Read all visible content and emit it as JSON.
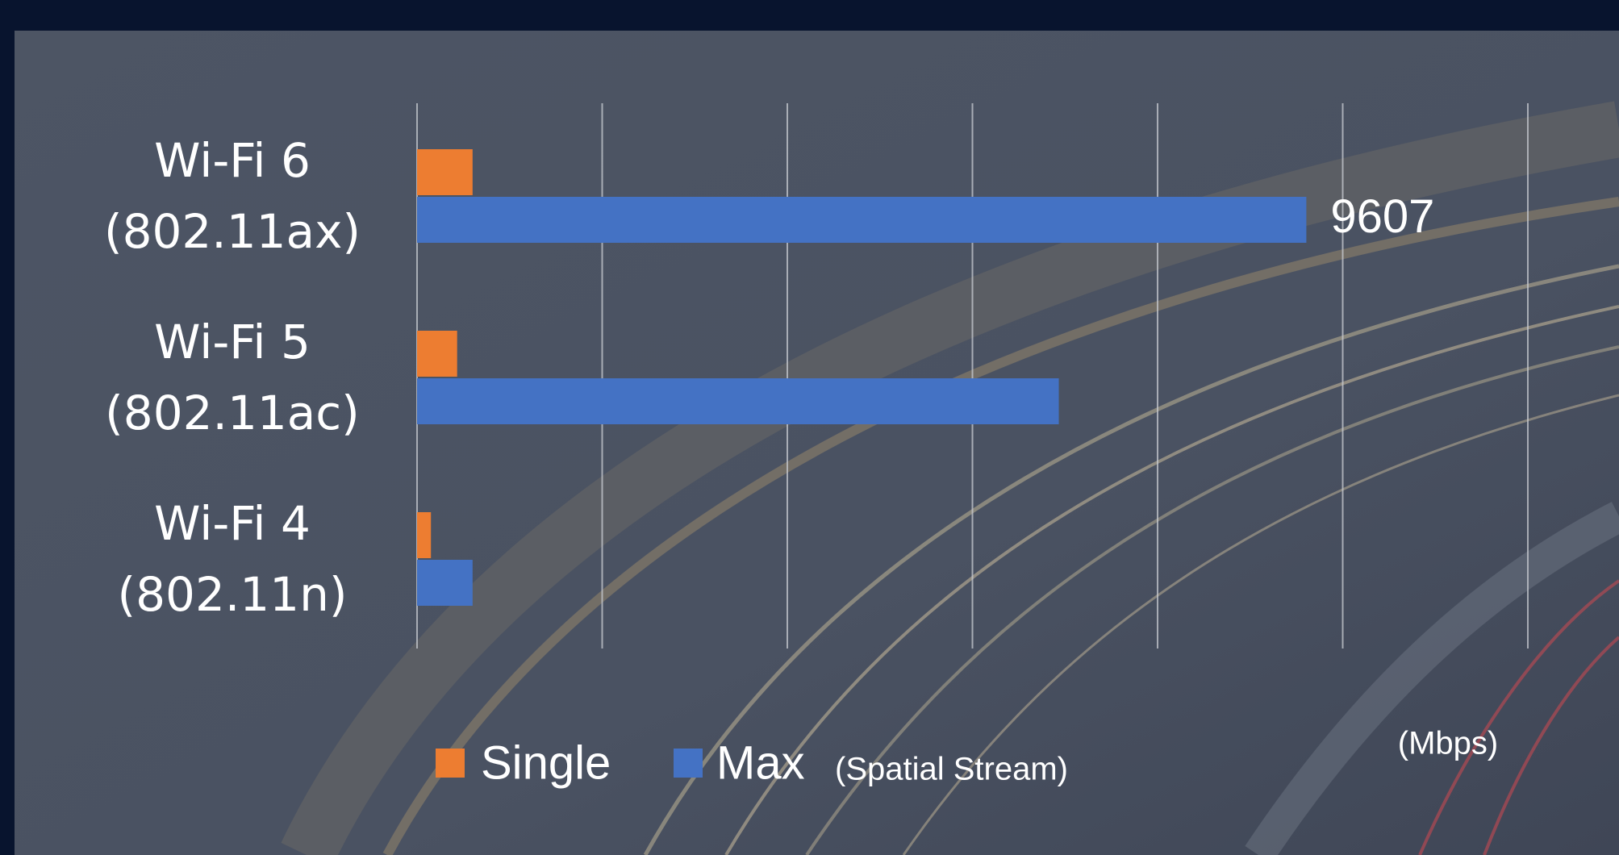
{
  "chart_data": {
    "type": "bar",
    "orientation": "horizontal",
    "categories": [
      "Wi-Fi 6 (802.11ax)",
      "Wi-Fi 5 (802.11ac)",
      "Wi-Fi 4 (802.11n)"
    ],
    "series": [
      {
        "name": "Single",
        "color": "#ed7d31",
        "values": [
          600,
          433,
          150
        ]
      },
      {
        "name": "Max",
        "color": "#4472c4",
        "values": [
          9607,
          6933,
          600
        ],
        "value_labels": [
          "9607",
          null,
          null
        ]
      }
    ],
    "legend_note": "(Spatial Stream)",
    "x_label": "(Mbps)",
    "xlim": [
      0,
      12000
    ],
    "xticks": [
      0,
      2000,
      4000,
      6000,
      8000,
      10000,
      12000
    ],
    "grid": true
  }
}
